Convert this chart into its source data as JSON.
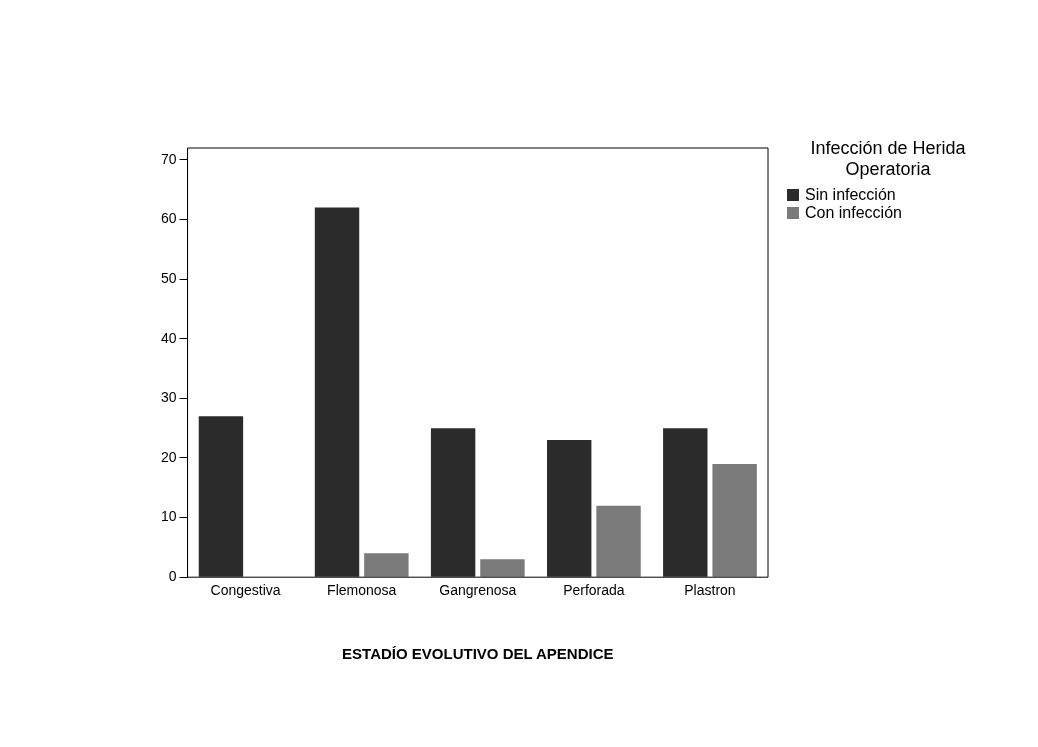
{
  "chart_data": {
    "type": "bar",
    "xlabel": "ESTADÍO EVOLUTIVO DEL APENDICE",
    "legend_title": "Infección de Herida Operatoria",
    "categories": [
      "Congestiva",
      "Flemonosa",
      "Gangrenosa",
      "Perforada",
      "Plastron"
    ],
    "series": [
      {
        "name": "Sin infección",
        "color": "#2b2b2b",
        "values": [
          27,
          62,
          25,
          23,
          25
        ]
      },
      {
        "name": "Con infección",
        "color": "#7a7a7a",
        "values": [
          0,
          4,
          3,
          12,
          19
        ]
      }
    ],
    "ylim": [
      0,
      72
    ],
    "yticks": [
      0,
      10,
      20,
      30,
      40,
      50,
      60,
      70
    ],
    "grid": false,
    "legend": "top right"
  }
}
